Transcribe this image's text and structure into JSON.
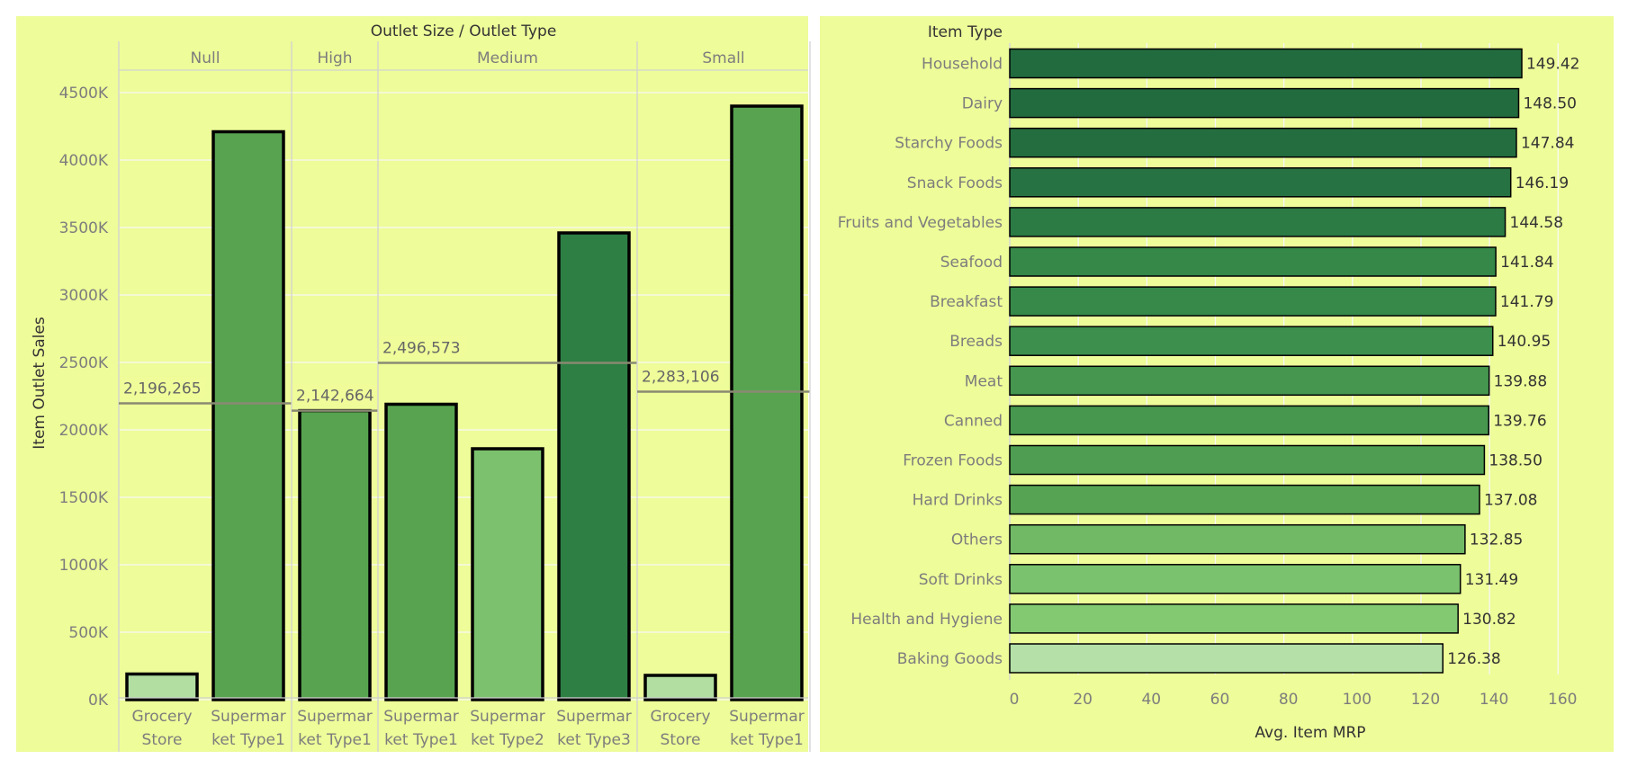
{
  "chart_data": [
    {
      "type": "bar",
      "title": "",
      "header": "Outlet Size  /  Outlet Type",
      "ylabel": "Item Outlet Sales",
      "ylim": [
        0,
        4700000
      ],
      "yticks": [
        0,
        500000,
        1000000,
        1500000,
        2000000,
        2500000,
        3000000,
        3500000,
        4000000,
        4500000
      ],
      "ytick_labels": [
        "0K",
        "500K",
        "1000K",
        "1500K",
        "2000K",
        "2500K",
        "3000K",
        "3500K",
        "4000K",
        "4500K"
      ],
      "groups": [
        {
          "name": "Null",
          "reference_value": 2196265,
          "reference_label": "2,196,265",
          "bars": [
            {
              "label": [
                "Grocery",
                "Store"
              ],
              "value": 190000,
              "color": "#b2dea1"
            },
            {
              "label": [
                "Supermar",
                "ket Type1"
              ],
              "value": 4210000,
              "color": "#58a350"
            }
          ]
        },
        {
          "name": "High",
          "reference_value": 2142664,
          "reference_label": "2,142,664",
          "bars": [
            {
              "label": [
                "Supermar",
                "ket Type1"
              ],
              "value": 2142664,
              "color": "#58a350"
            }
          ]
        },
        {
          "name": "Medium",
          "reference_value": 2496573,
          "reference_label": "2,496,573",
          "bars": [
            {
              "label": [
                "Supermar",
                "ket Type1"
              ],
              "value": 2190000,
              "color": "#58a350"
            },
            {
              "label": [
                "Supermar",
                "ket Type2"
              ],
              "value": 1860000,
              "color": "#7cc16d"
            },
            {
              "label": [
                "Supermar",
                "ket Type3"
              ],
              "value": 3460000,
              "color": "#2e7f44"
            }
          ]
        },
        {
          "name": "Small",
          "reference_value": 2283106,
          "reference_label": "2,283,106",
          "bars": [
            {
              "label": [
                "Grocery",
                "Store"
              ],
              "value": 180000,
              "color": "#b2dea1"
            },
            {
              "label": [
                "Supermar",
                "ket Type1"
              ],
              "value": 4400000,
              "color": "#58a350"
            }
          ]
        }
      ]
    },
    {
      "type": "bar",
      "orientation": "horizontal",
      "title": "",
      "header": "Item Type",
      "xlabel": "Avg. Item MRP",
      "xlim": [
        0,
        176
      ],
      "xticks": [
        0,
        20,
        40,
        60,
        80,
        100,
        120,
        140,
        160
      ],
      "categories": [
        "Household",
        "Dairy",
        "Starchy Foods",
        "Snack Foods",
        "Fruits and Vegetables",
        "Seafood",
        "Breakfast",
        "Breads",
        "Meat",
        "Canned",
        "Frozen Foods",
        "Hard Drinks",
        "Others",
        "Soft Drinks",
        "Health and Hygiene",
        "Baking Goods"
      ],
      "values": [
        149.42,
        148.5,
        147.84,
        146.19,
        144.58,
        141.84,
        141.79,
        140.95,
        139.88,
        139.76,
        138.5,
        137.08,
        132.85,
        131.49,
        130.82,
        126.38
      ],
      "value_labels": [
        "149.42",
        "148.50",
        "147.84",
        "146.19",
        "144.58",
        "141.84",
        "141.79",
        "140.95",
        "139.88",
        "139.76",
        "138.50",
        "137.08",
        "132.85",
        "131.49",
        "130.82",
        "126.38"
      ],
      "colors": [
        "#226b3e",
        "#226b3e",
        "#246d3f",
        "#277242",
        "#2c7b45",
        "#358848",
        "#37894a",
        "#3d8f4d",
        "#46964f",
        "#47974f",
        "#4f9d52",
        "#57a354",
        "#71b965",
        "#7bc26f",
        "#83c972",
        "#b5e0a7"
      ]
    }
  ]
}
